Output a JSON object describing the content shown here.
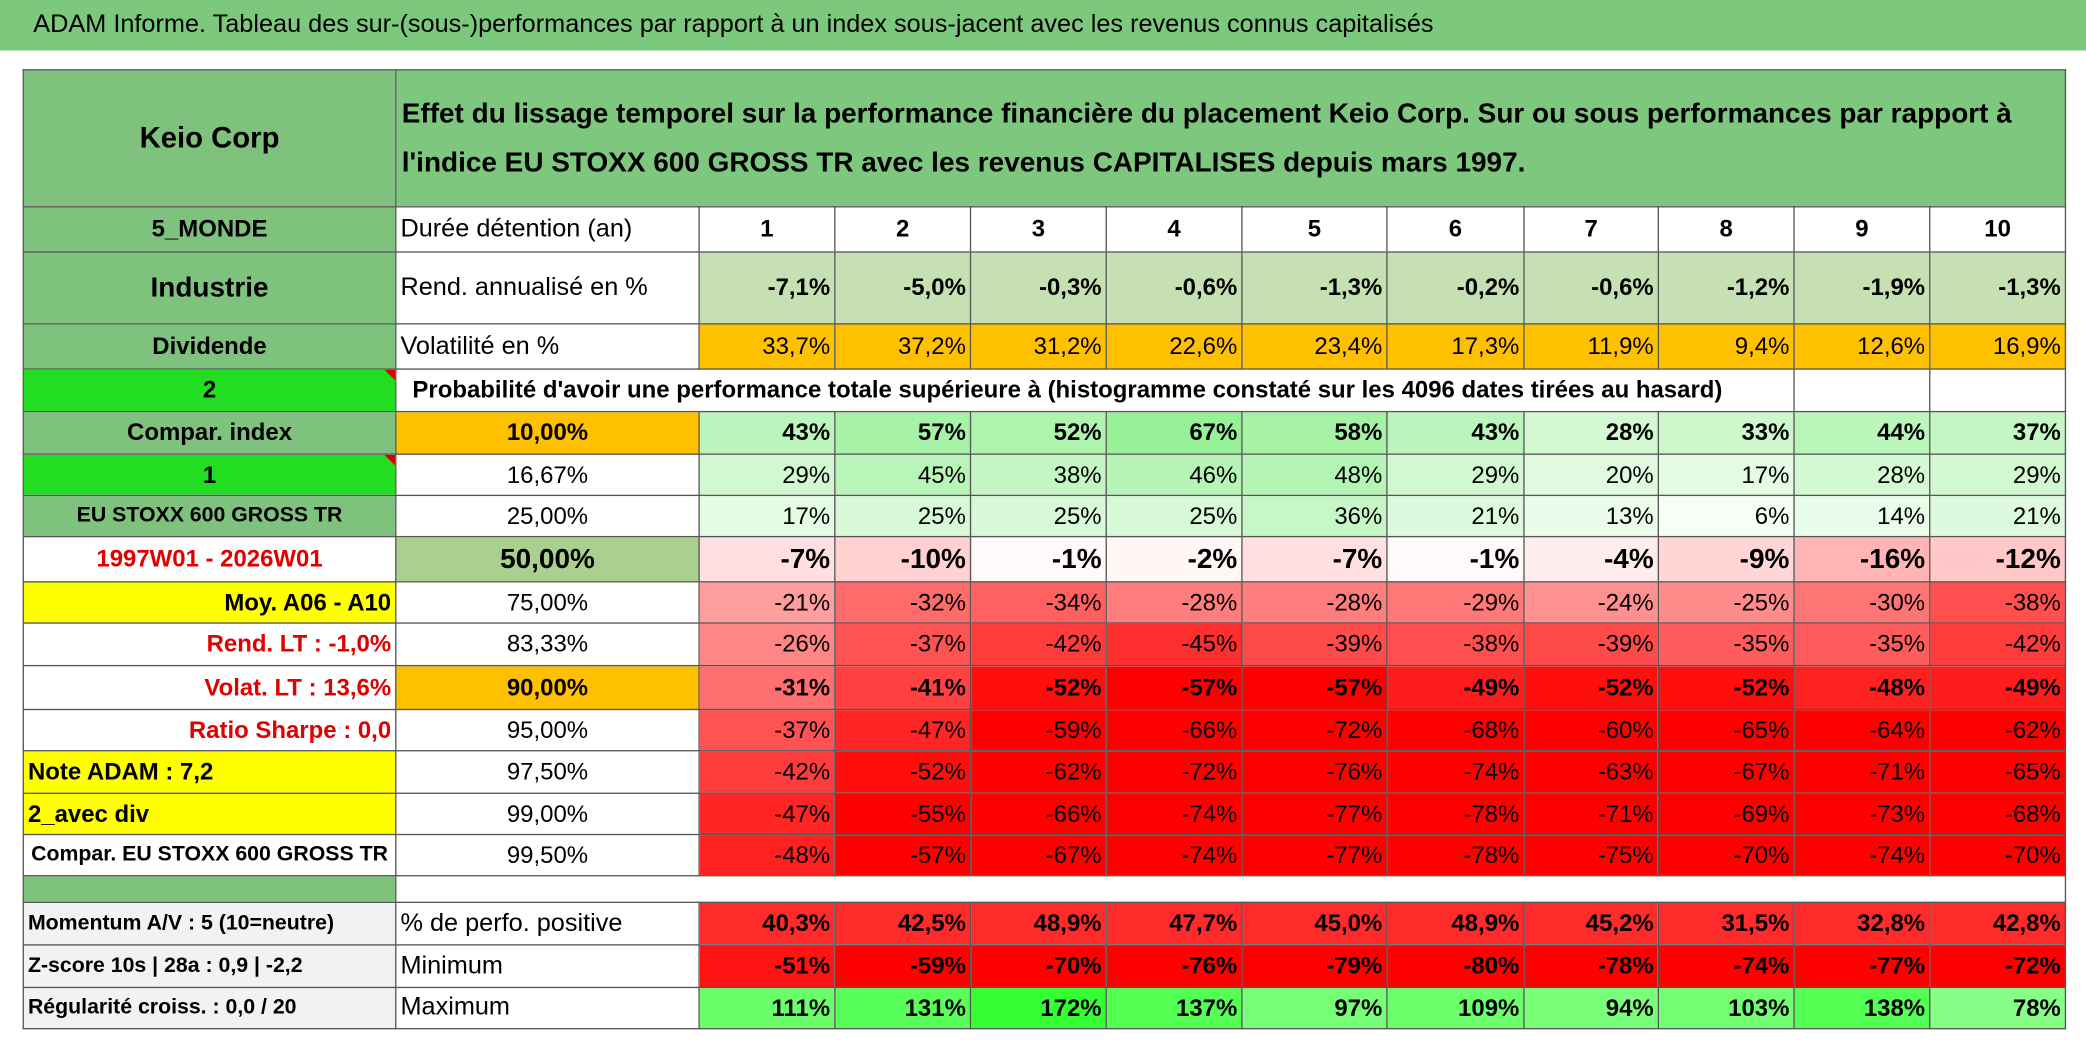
{
  "header": {
    "title": "ADAM Informe. Tableau des sur-(sous-)performances par rapport à un index sous-jacent avec les revenus connus capitalisés"
  },
  "table": {
    "rows": [
      {
        "left": "Keio Corp",
        "label": "Effet du lissage temporel sur la performance financière du placement Keio Corp. Sur ou sous performances par rapport à l'indice EU STOXX 600 GROSS TR avec les revenus CAPITALISES depuis mars 1997."
      },
      {
        "left": "5_MONDE",
        "label": "Durée détention (an)",
        "values": [
          1,
          2,
          3,
          4,
          5,
          6,
          7,
          8,
          9,
          10
        ]
      },
      {
        "left": "Industrie",
        "label": "Rend. annualisé en %",
        "values": [
          "-7,1%",
          "-5,0%",
          "-0,3%",
          "-0,6%",
          "-1,3%",
          "-0,2%",
          "-0,6%",
          "-1,2%",
          "-1,9%",
          "-1,3%"
        ]
      },
      {
        "left": "Dividende",
        "label": "Volatilité en %",
        "values": [
          "33,7%",
          "37,2%",
          "31,2%",
          "22,6%",
          "23,4%",
          "17,3%",
          "11,9%",
          "9,4%",
          "12,6%",
          "16,9%"
        ]
      },
      {
        "left": "2",
        "label": "Probabilité d'avoir une performance totale supérieure à (histogramme constaté sur les 4096 dates tirées au hasard)"
      },
      {
        "left": "Compar. index",
        "label": "10,00%",
        "values": [
          "43%",
          "57%",
          "52%",
          "67%",
          "58%",
          "43%",
          "28%",
          "33%",
          "44%",
          "37%"
        ]
      },
      {
        "left": "1",
        "label": "16,67%",
        "values": [
          "29%",
          "45%",
          "38%",
          "46%",
          "48%",
          "29%",
          "20%",
          "17%",
          "28%",
          "29%"
        ]
      },
      {
        "left": "EU STOXX 600 GROSS TR",
        "label": "25,00%",
        "values": [
          "17%",
          "25%",
          "25%",
          "25%",
          "36%",
          "21%",
          "13%",
          "6%",
          "14%",
          "21%"
        ]
      },
      {
        "left": "1997W01 - 2026W01",
        "label": "50,00%",
        "values": [
          "-7%",
          "-10%",
          "-1%",
          "-2%",
          "-7%",
          "-1%",
          "-4%",
          "-9%",
          "-16%",
          "-12%"
        ]
      },
      {
        "left": "Moy. A06 - A10",
        "label": "75,00%",
        "values": [
          "-21%",
          "-32%",
          "-34%",
          "-28%",
          "-28%",
          "-29%",
          "-24%",
          "-25%",
          "-30%",
          "-38%"
        ]
      },
      {
        "left": "Rend. LT :   -1,0%",
        "label": "83,33%",
        "values": [
          "-26%",
          "-37%",
          "-42%",
          "-45%",
          "-39%",
          "-38%",
          "-39%",
          "-35%",
          "-35%",
          "-42%"
        ]
      },
      {
        "left": "Volat. LT :   13,6%",
        "label": "90,00%",
        "values": [
          "-31%",
          "-41%",
          "-52%",
          "-57%",
          "-57%",
          "-49%",
          "-52%",
          "-52%",
          "-48%",
          "-49%"
        ]
      },
      {
        "left": "Ratio Sharpe :    0,0",
        "label": "95,00%",
        "values": [
          "-37%",
          "-47%",
          "-59%",
          "-66%",
          "-72%",
          "-68%",
          "-60%",
          "-65%",
          "-64%",
          "-62%"
        ]
      },
      {
        "left": "Note ADAM : 7,2",
        "label": "97,50%",
        "values": [
          "-42%",
          "-52%",
          "-62%",
          "-72%",
          "-76%",
          "-74%",
          "-63%",
          "-67%",
          "-71%",
          "-65%"
        ]
      },
      {
        "left": "2_avec div",
        "label": "99,00%",
        "values": [
          "-47%",
          "-55%",
          "-66%",
          "-74%",
          "-77%",
          "-78%",
          "-71%",
          "-69%",
          "-73%",
          "-68%"
        ]
      },
      {
        "left": "Compar. EU STOXX 600 GROSS TR",
        "label": "99,50%",
        "values": [
          "-48%",
          "-57%",
          "-67%",
          "-74%",
          "-77%",
          "-78%",
          "-75%",
          "-70%",
          "-74%",
          "-70%"
        ]
      }
    ],
    "stats": [
      {
        "left": "Momentum A/V : 5 (10=neutre)",
        "label": "% de perfo. positive",
        "values": [
          "40,3%",
          "42,5%",
          "48,9%",
          "47,7%",
          "45,0%",
          "48,9%",
          "45,2%",
          "31,5%",
          "32,8%",
          "42,8%"
        ]
      },
      {
        "left": "Z-score 10s | 28a : 0,9 | -2,2",
        "label": "Minimum",
        "values": [
          "-51%",
          "-59%",
          "-70%",
          "-76%",
          "-79%",
          "-80%",
          "-78%",
          "-74%",
          "-77%",
          "-72%"
        ]
      },
      {
        "left": "Régularité croiss. : 0,0 / 20",
        "label": "Maximum",
        "values": [
          "111%",
          "131%",
          "172%",
          "137%",
          "97%",
          "109%",
          "94%",
          "103%",
          "138%",
          "78%"
        ]
      }
    ]
  }
}
